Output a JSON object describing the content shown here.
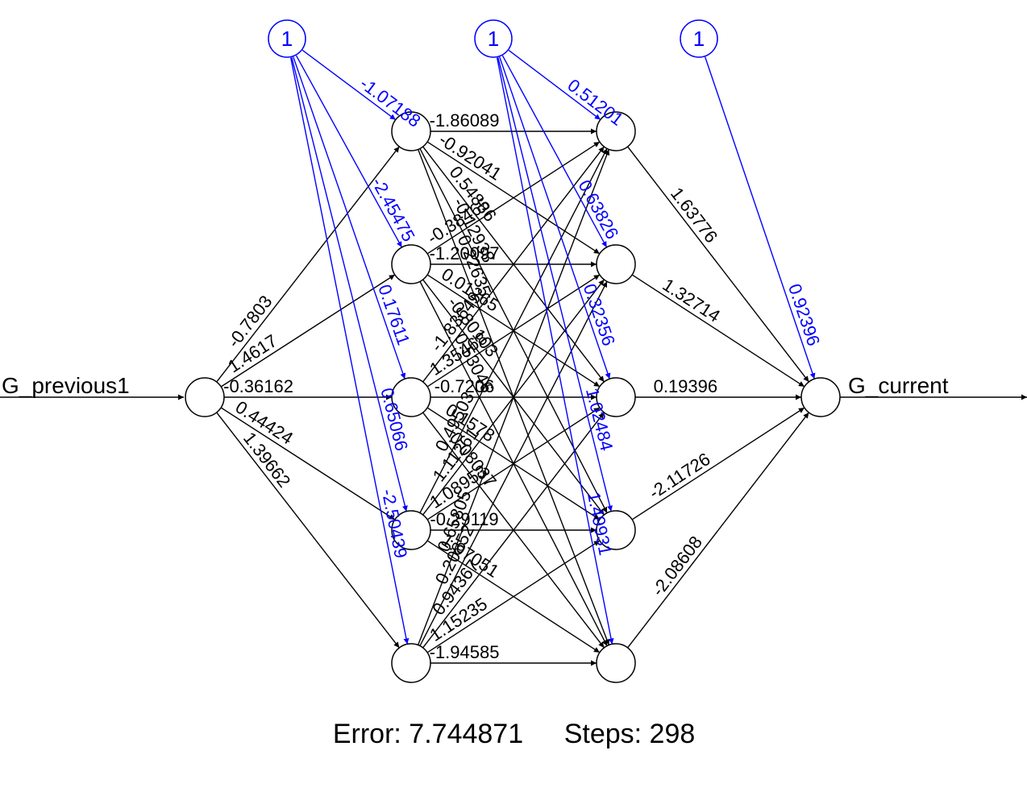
{
  "colors": {
    "weight": "#000000",
    "bias": "#0000ff",
    "background": "#ffffff"
  },
  "input_label": "G_previous1",
  "output_label": "G_current",
  "bias_node_label": "1",
  "weights": {
    "input_to_h1": [
      "-0.7803",
      "1.4617",
      "-0.36162",
      "0.44424",
      "1.39662"
    ],
    "h1_to_h2": [
      [
        "-1.86089",
        "-0.92041",
        "0.54886",
        "-0.12938",
        "0.22635"
      ],
      [
        "-0.38465",
        "-1.20097",
        "0.01265",
        "-0.80103",
        "0.53046"
      ],
      [
        "-1.83649",
        "1.35468",
        "-0.7206",
        "0.1578",
        "0.08037"
      ],
      [
        "0.49503",
        "1.11261",
        "1.08953",
        "-0.29119",
        "1.97051"
      ],
      [
        "0.65805",
        "0.20852",
        "0.94367",
        "1.15235",
        "-1.94585"
      ]
    ],
    "h2_to_output": [
      "1.63776",
      "1.32714",
      "0.19396",
      "-2.11726",
      "-2.08608"
    ],
    "bias_to_h1": [
      "-1.07188",
      "-2.45475",
      "0.17611",
      "0.65066",
      "-2.50439"
    ],
    "bias_to_h2": [
      "0.51201",
      "0.63826",
      "0.32356",
      "1.02484",
      "1.49931"
    ],
    "bias_to_output": "0.92396"
  },
  "footer": {
    "error_label": "Error: 7.744871",
    "steps_label": "Steps: 298"
  }
}
